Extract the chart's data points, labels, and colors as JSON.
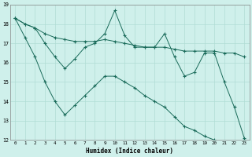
{
  "xlabel": "Humidex (Indice chaleur)",
  "xlim": [
    -0.5,
    23.5
  ],
  "ylim": [
    12,
    19
  ],
  "yticks": [
    12,
    13,
    14,
    15,
    16,
    17,
    18,
    19
  ],
  "xticks": [
    0,
    1,
    2,
    3,
    4,
    5,
    6,
    7,
    8,
    9,
    10,
    11,
    12,
    13,
    14,
    15,
    16,
    17,
    18,
    19,
    20,
    21,
    22,
    23
  ],
  "bg_color": "#cff0eb",
  "grid_color": "#b0ddd5",
  "line_color": "#1a6b5a",
  "series1_x": [
    0,
    1,
    2,
    3,
    4,
    5,
    6,
    7,
    8,
    9,
    10,
    11,
    12,
    13,
    14,
    15,
    16,
    17,
    18,
    19,
    20,
    21,
    22,
    23
  ],
  "series1_y": [
    18.3,
    18.0,
    17.8,
    17.0,
    16.3,
    15.7,
    16.2,
    16.8,
    17.0,
    17.5,
    18.7,
    17.4,
    16.8,
    16.8,
    16.8,
    17.5,
    16.3,
    15.3,
    15.5,
    16.5,
    16.5,
    15.0,
    13.7,
    12.1
  ],
  "series2_x": [
    0,
    1,
    2,
    3,
    4,
    5,
    6,
    7,
    8,
    9,
    10,
    11,
    12,
    13,
    14,
    15,
    16,
    17,
    18,
    19,
    20,
    21,
    22,
    23
  ],
  "series2_y": [
    18.3,
    18.0,
    17.8,
    17.5,
    17.3,
    17.2,
    17.1,
    17.1,
    17.1,
    17.2,
    17.1,
    17.0,
    16.9,
    16.8,
    16.8,
    16.8,
    16.7,
    16.6,
    16.6,
    16.6,
    16.6,
    16.5,
    16.5,
    16.3
  ],
  "series3_x": [
    0,
    1,
    2,
    3,
    4,
    5,
    6,
    7,
    8,
    9,
    10,
    11,
    12,
    13,
    14,
    15,
    16,
    17,
    18,
    19,
    20,
    21,
    22,
    23
  ],
  "series3_y": [
    18.3,
    17.3,
    16.3,
    15.0,
    14.0,
    13.3,
    13.8,
    14.3,
    14.8,
    15.3,
    15.3,
    15.0,
    14.7,
    14.3,
    14.0,
    13.7,
    13.2,
    12.7,
    12.5,
    12.2,
    12.0,
    11.9,
    11.9,
    12.0
  ]
}
